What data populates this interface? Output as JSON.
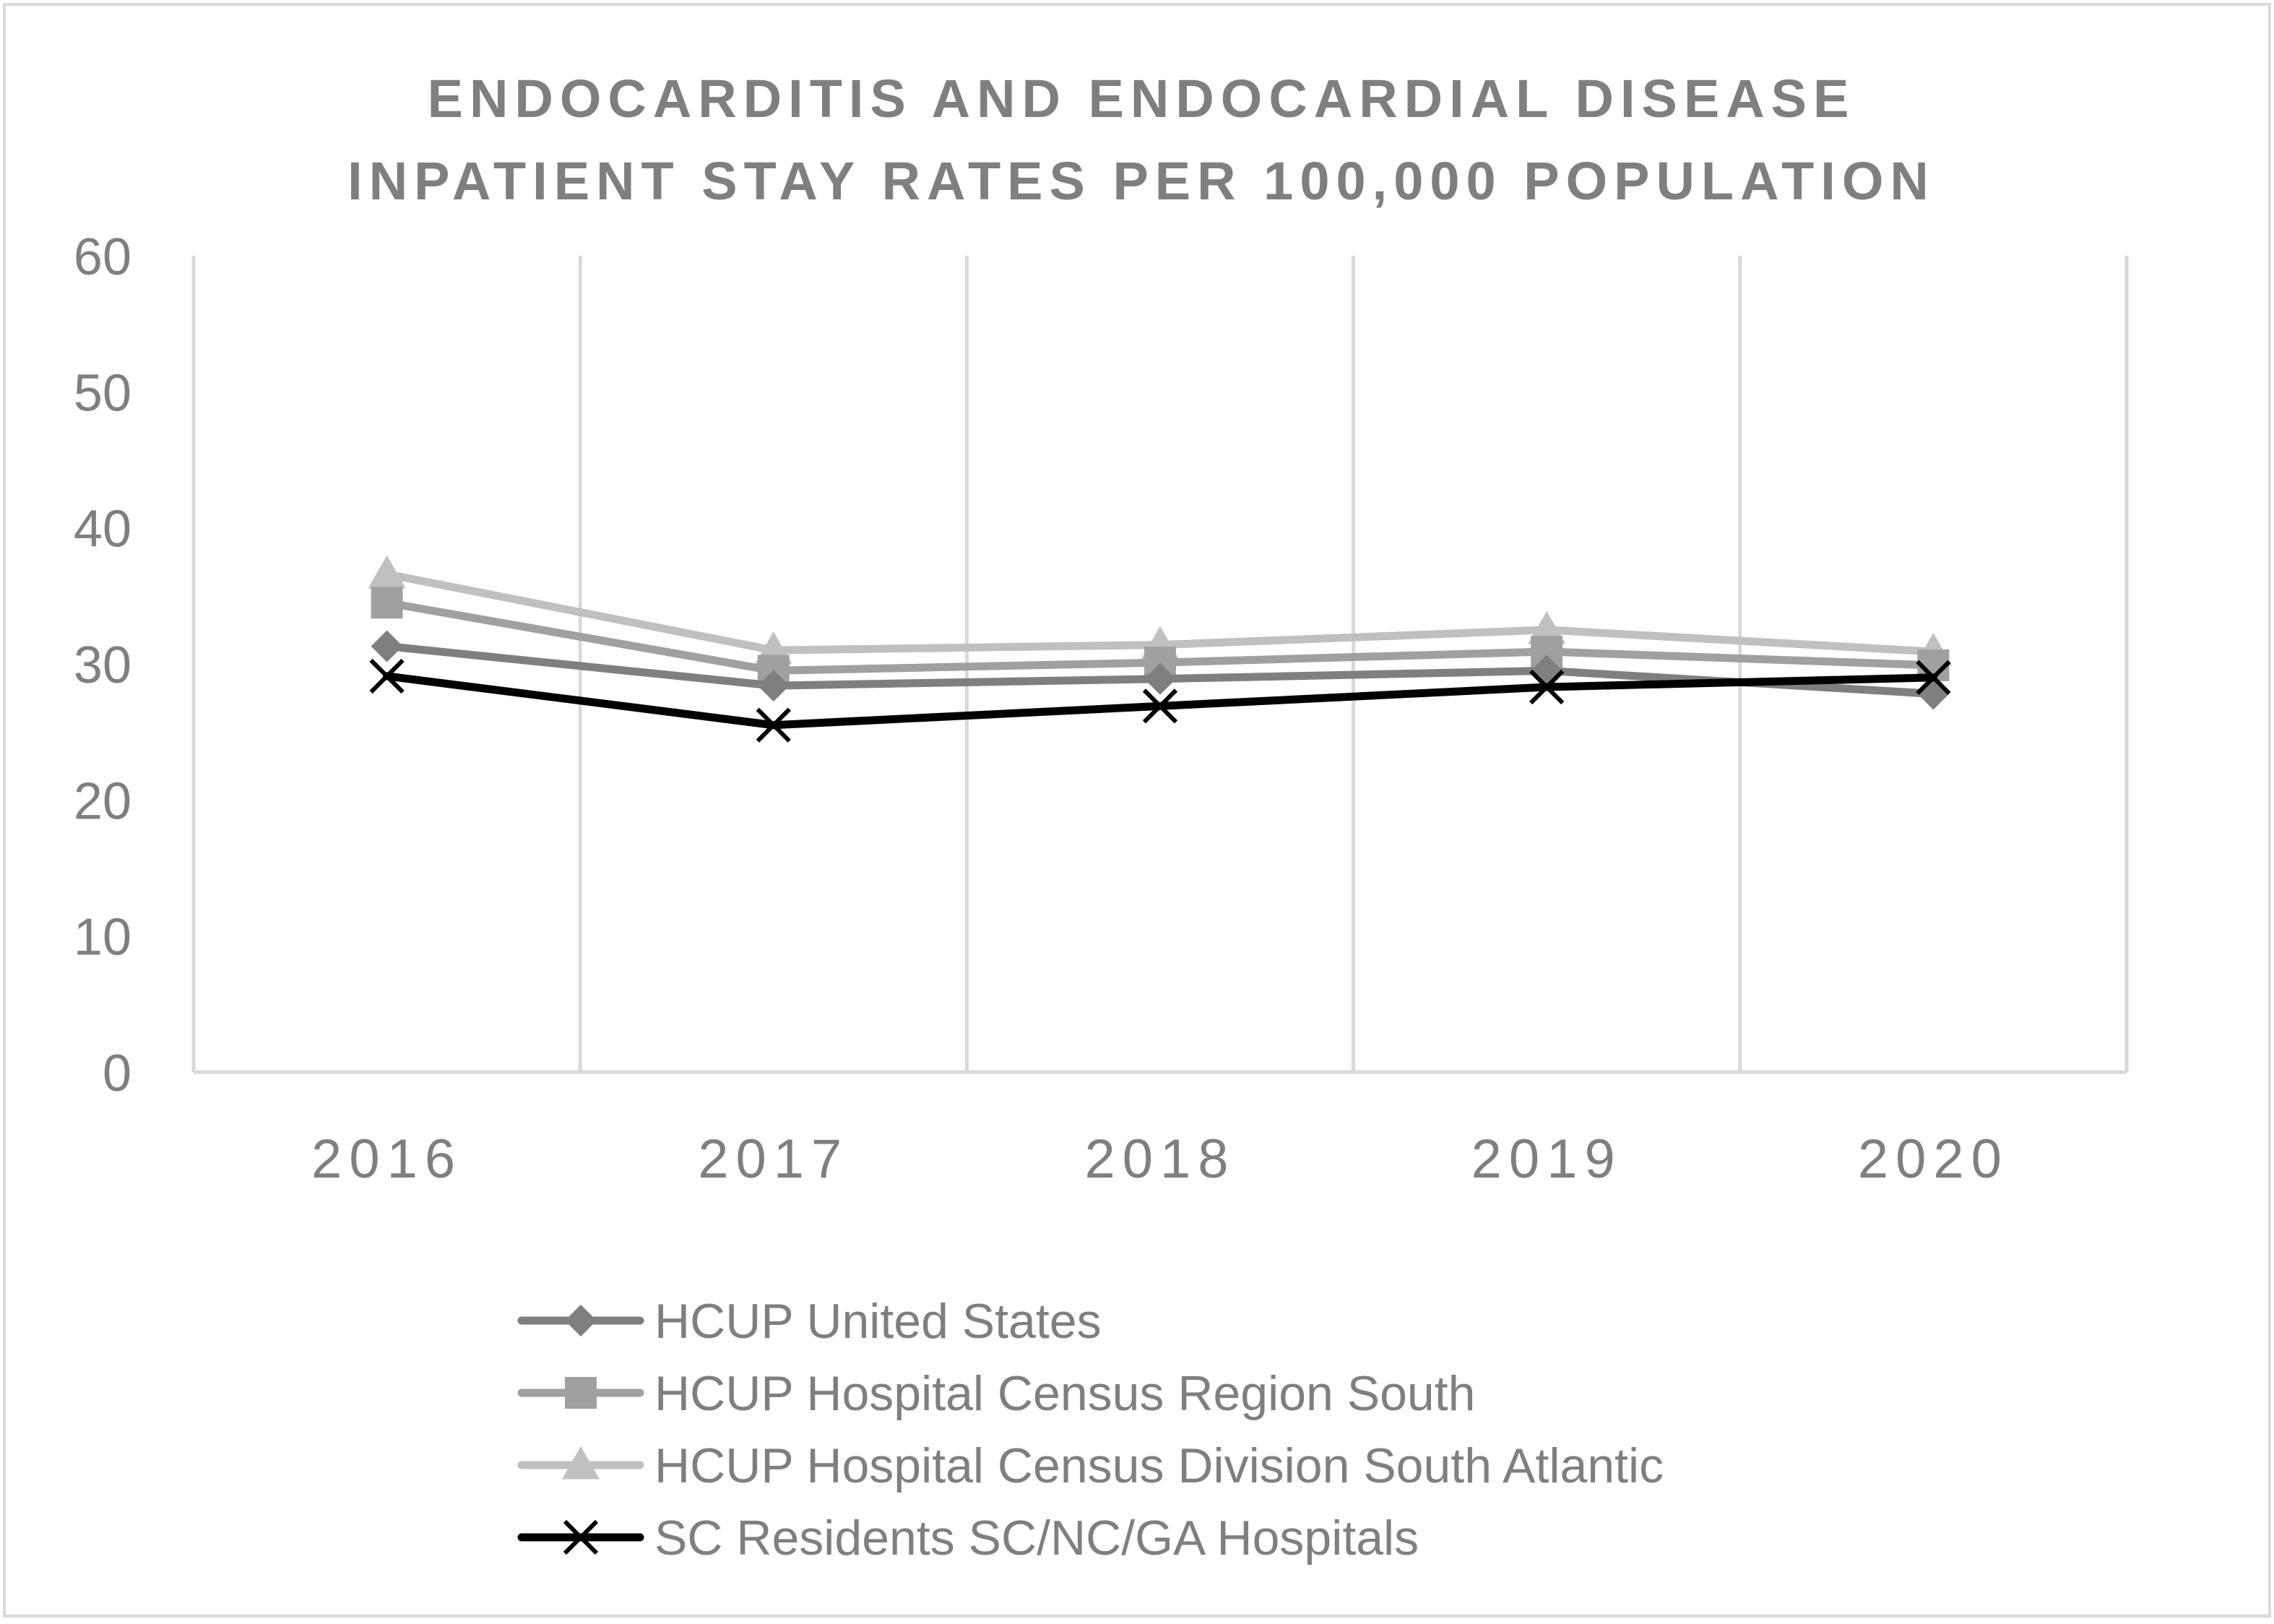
{
  "chart_data": {
    "type": "line",
    "title_lines": [
      "ENDOCARDITIS AND ENDOCARDIAL DISEASE",
      "INPATIENT STAY RATES PER 100,000 POPULATION"
    ],
    "xlabel": "",
    "ylabel": "",
    "categories": [
      "2016",
      "2017",
      "2018",
      "2019",
      "2020"
    ],
    "ylim": [
      0,
      60
    ],
    "yticks": [
      0,
      10,
      20,
      30,
      40,
      50,
      60
    ],
    "grid": "vertical",
    "legend_position": "bottom",
    "series": [
      {
        "name": "HCUP United States",
        "values": [
          31.3,
          28.4,
          28.9,
          29.5,
          27.8
        ],
        "color": "#7f7f7f",
        "marker": "diamond"
      },
      {
        "name": "HCUP Hospital Census Region South",
        "values": [
          34.5,
          29.5,
          30.1,
          30.9,
          29.9
        ],
        "color": "#a0a0a0",
        "marker": "square"
      },
      {
        "name": "HCUP Hospital Census Division South Atlantic",
        "values": [
          36.6,
          31.0,
          31.4,
          32.5,
          30.9
        ],
        "color": "#c0c0c0",
        "marker": "triangle"
      },
      {
        "name": "SC Residents  SC/NC/GA Hospitals",
        "values": [
          29.1,
          25.5,
          26.9,
          28.3,
          29.0
        ],
        "color": "#000000",
        "marker": "x"
      }
    ]
  }
}
